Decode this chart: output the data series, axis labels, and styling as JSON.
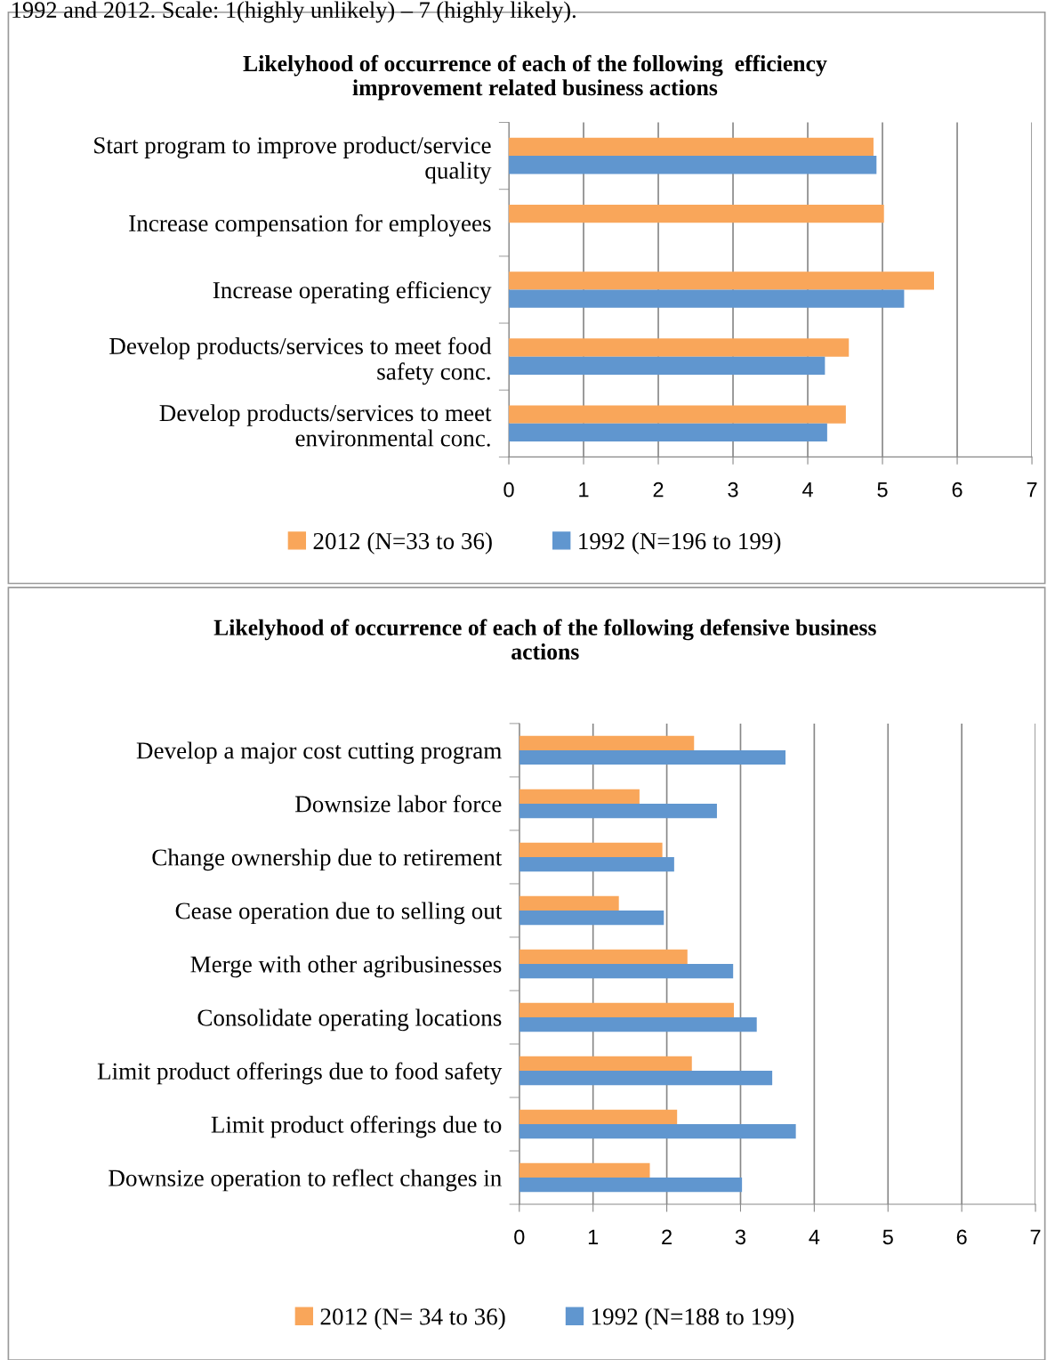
{
  "chart_data": [
    {
      "type": "bar",
      "orientation": "horizontal",
      "title": "Likelyhood of occurrence of each of the following  efficiency\nimprovement related business actions",
      "annotations": [
        "1992 and 2012. Scale: 1(highly unlikely) – 7 (highly likely)."
      ],
      "categories": [
        "Start program to improve product/service\nquality",
        "Increase compensation for employees",
        "Increase operating efficiency",
        "Develop products/services to meet food\nsafety conc.",
        "Develop products/services to meet\nenvironmental conc."
      ],
      "series": [
        {
          "name": "2012 (N=33 to 36)",
          "color": "#f9a65a",
          "values": [
            4.88,
            5.02,
            5.69,
            4.55,
            4.51
          ]
        },
        {
          "name": "1992 (N=196 to 199)",
          "color": "#6096cf",
          "values": [
            4.92,
            null,
            5.29,
            4.23,
            4.26
          ]
        }
      ],
      "xlim": [
        0,
        7
      ],
      "xticks": [
        0,
        1,
        2,
        3,
        4,
        5,
        6,
        7
      ],
      "grid": "x",
      "legend": "bottom"
    },
    {
      "type": "bar",
      "orientation": "horizontal",
      "title": "Likelyhood of occurrence of each of the following defensive business\nactions",
      "categories": [
        "Develop a major cost cutting program",
        "Downsize labor force",
        "Change ownership due to retirement",
        "Cease operation due to selling out",
        "Merge with other agribusinesses",
        "Consolidate operating locations",
        "Limit product offerings due to food safety",
        "Limit product offerings due to",
        "Downsize operation to reflect changes in"
      ],
      "series": [
        {
          "name": "2012 (N= 34 to 36)",
          "color": "#f9a65a",
          "values": [
            2.37,
            1.63,
            1.94,
            1.35,
            2.28,
            2.91,
            2.34,
            2.14,
            1.77
          ]
        },
        {
          "name": "1992 (N=188 to 199)",
          "color": "#6096cf",
          "values": [
            3.61,
            2.68,
            2.1,
            1.96,
            2.9,
            3.22,
            3.43,
            3.75,
            3.02
          ]
        }
      ],
      "xlim": [
        0,
        7
      ],
      "xticks": [
        0,
        1,
        2,
        3,
        4,
        5,
        6,
        7
      ],
      "grid": "x",
      "legend": "bottom"
    }
  ]
}
